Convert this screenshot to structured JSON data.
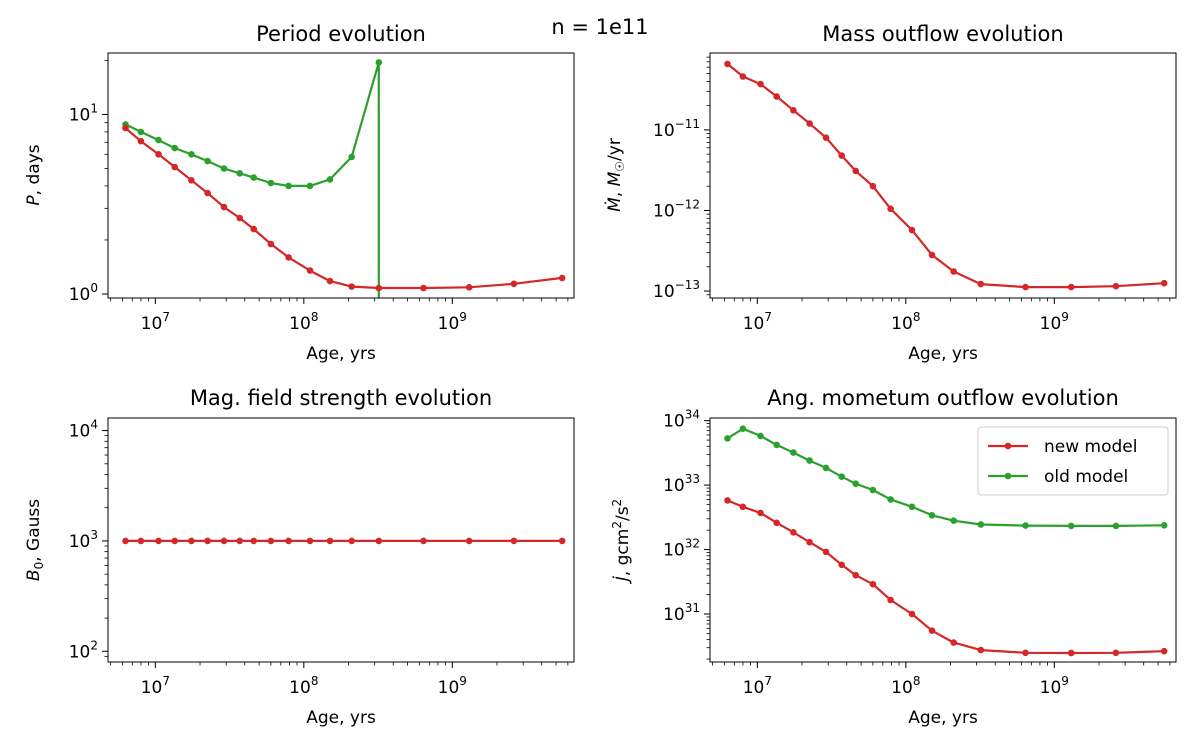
{
  "suptitle": "n = 1e11",
  "colors": {
    "new_model": "#d62728",
    "old_model": "#2ca02c"
  },
  "legend": {
    "new_label": "new model",
    "old_label": "old model",
    "placement": "upper right"
  },
  "chart_data": [
    {
      "type": "line",
      "title": "Period evolution",
      "xlabel": "Age, yrs",
      "ylabel": "P, days",
      "xscale": "log",
      "yscale": "log",
      "xlim": [
        4800000.0,
        6600000000.0
      ],
      "ylim": [
        0.95,
        22
      ],
      "x_ticks": [
        {
          "value": 10000000.0,
          "base": "10",
          "exp": "7"
        },
        {
          "value": 100000000.0,
          "base": "10",
          "exp": "8"
        },
        {
          "value": 1000000000.0,
          "base": "10",
          "exp": "9"
        }
      ],
      "y_ticks": [
        {
          "value": 1,
          "base": "10",
          "exp": "0"
        },
        {
          "value": 10,
          "base": "10",
          "exp": "1"
        }
      ],
      "series": [
        {
          "key": "new",
          "x": [
            6300000.0,
            8000000.0,
            10500000.0,
            13500000.0,
            17500000.0,
            22500000.0,
            29000000.0,
            37000000.0,
            46000000.0,
            60000000.0,
            79000000.0,
            110000000.0,
            150000000.0,
            210000000.0,
            320000000.0,
            640000000.0,
            1300000000.0,
            2600000000.0,
            5500000000.0
          ],
          "y": [
            8.4,
            7.1,
            6.0,
            5.1,
            4.3,
            3.65,
            3.05,
            2.65,
            2.3,
            1.9,
            1.6,
            1.35,
            1.18,
            1.1,
            1.08,
            1.08,
            1.09,
            1.14,
            1.23
          ]
        },
        {
          "key": "old",
          "x": [
            6300000.0,
            8000000.0,
            10500000.0,
            13500000.0,
            17500000.0,
            22500000.0,
            29000000.0,
            37000000.0,
            46000000.0,
            60000000.0,
            79000000.0,
            110000000.0,
            150000000.0,
            210000000.0,
            320000000.0,
            320000000.0
          ],
          "y": [
            8.8,
            8.0,
            7.2,
            6.5,
            6.0,
            5.5,
            5.0,
            4.7,
            4.45,
            4.15,
            4.0,
            4.0,
            4.35,
            5.8,
            19.5,
            0.9
          ]
        }
      ]
    },
    {
      "type": "line",
      "title": "Mass outflow evolution",
      "xlabel": "Age, yrs",
      "ylabel": "Ṁ, M☉/yr",
      "xscale": "log",
      "yscale": "log",
      "xlim": [
        4800000.0,
        6600000000.0
      ],
      "ylim": [
        8.2e-14,
        9e-11
      ],
      "x_ticks": [
        {
          "value": 10000000.0,
          "base": "10",
          "exp": "7"
        },
        {
          "value": 100000000.0,
          "base": "10",
          "exp": "8"
        },
        {
          "value": 1000000000.0,
          "base": "10",
          "exp": "9"
        }
      ],
      "y_ticks": [
        {
          "value": 1e-13,
          "base": "10",
          "exp": "−13"
        },
        {
          "value": 1e-12,
          "base": "10",
          "exp": "−12"
        },
        {
          "value": 1e-11,
          "base": "10",
          "exp": "−11"
        }
      ],
      "series": [
        {
          "key": "new",
          "x": [
            6300000.0,
            8000000.0,
            10500000.0,
            13500000.0,
            17500000.0,
            22500000.0,
            29000000.0,
            37000000.0,
            46000000.0,
            60000000.0,
            79000000.0,
            110000000.0,
            150000000.0,
            210000000.0,
            320000000.0,
            640000000.0,
            1300000000.0,
            2600000000.0,
            5500000000.0
          ],
          "y": [
            6.6e-11,
            4.6e-11,
            3.7e-11,
            2.6e-11,
            1.75e-11,
            1.2e-11,
            8e-12,
            4.8e-12,
            3.1e-12,
            2e-12,
            1.05e-12,
            5.7e-13,
            2.8e-13,
            1.75e-13,
            1.22e-13,
            1.12e-13,
            1.12e-13,
            1.15e-13,
            1.25e-13
          ]
        }
      ]
    },
    {
      "type": "line",
      "title": "Mag. field strength evolution",
      "xlabel": "Age, yrs",
      "ylabel": "B₀, Gauss",
      "xscale": "log",
      "yscale": "log",
      "xlim": [
        4800000.0,
        6600000000.0
      ],
      "ylim": [
        80,
        13000
      ],
      "x_ticks": [
        {
          "value": 10000000.0,
          "base": "10",
          "exp": "7"
        },
        {
          "value": 100000000.0,
          "base": "10",
          "exp": "8"
        },
        {
          "value": 1000000000.0,
          "base": "10",
          "exp": "9"
        }
      ],
      "y_ticks": [
        {
          "value": 100,
          "base": "10",
          "exp": "2"
        },
        {
          "value": 1000,
          "base": "10",
          "exp": "3"
        },
        {
          "value": 10000,
          "base": "10",
          "exp": "4"
        }
      ],
      "series": [
        {
          "key": "new",
          "x": [
            6300000.0,
            8000000.0,
            10500000.0,
            13500000.0,
            17500000.0,
            22500000.0,
            29000000.0,
            37000000.0,
            46000000.0,
            60000000.0,
            79000000.0,
            110000000.0,
            150000000.0,
            210000000.0,
            320000000.0,
            640000000.0,
            1300000000.0,
            2600000000.0,
            5500000000.0
          ],
          "y": [
            1000,
            1000,
            1000,
            1000,
            1000,
            1000,
            1000,
            1000,
            1000,
            1000,
            1000,
            1000,
            1000,
            1000,
            1000,
            1000,
            1000,
            1000,
            1000
          ]
        }
      ]
    },
    {
      "type": "line",
      "title": "Ang. mometum outflow evolution",
      "xlabel": "Age, yrs",
      "ylabel": "J̇, gcm²/s²",
      "xscale": "log",
      "yscale": "log",
      "xlim": [
        4800000.0,
        6600000000.0
      ],
      "ylim": [
        1.8e+30,
        1.1e+34
      ],
      "legend": true,
      "x_ticks": [
        {
          "value": 10000000.0,
          "base": "10",
          "exp": "7"
        },
        {
          "value": 100000000.0,
          "base": "10",
          "exp": "8"
        },
        {
          "value": 1000000000.0,
          "base": "10",
          "exp": "9"
        }
      ],
      "y_ticks": [
        {
          "value": 1e+31,
          "base": "10",
          "exp": "31"
        },
        {
          "value": 1e+32,
          "base": "10",
          "exp": "32"
        },
        {
          "value": 1e+33,
          "base": "10",
          "exp": "33"
        },
        {
          "value": 1e+34,
          "base": "10",
          "exp": "34"
        }
      ],
      "series": [
        {
          "key": "new",
          "x": [
            6300000.0,
            8000000.0,
            10500000.0,
            13500000.0,
            17500000.0,
            22500000.0,
            29000000.0,
            37000000.0,
            46000000.0,
            60000000.0,
            79000000.0,
            110000000.0,
            150000000.0,
            210000000.0,
            320000000.0,
            640000000.0,
            1300000000.0,
            2600000000.0,
            5500000000.0
          ],
          "y": [
            5.8e+32,
            4.6e+32,
            3.7e+32,
            2.6e+32,
            1.85e+32,
            1.3e+32,
            9.2e+31,
            5.8e+31,
            4e+31,
            2.9e+31,
            1.65e+31,
            1e+31,
            5.5e+30,
            3.6e+30,
            2.75e+30,
            2.5e+30,
            2.48e+30,
            2.5e+30,
            2.65e+30
          ]
        },
        {
          "key": "old",
          "x": [
            6300000.0,
            8000000.0,
            10500000.0,
            13500000.0,
            17500000.0,
            22500000.0,
            29000000.0,
            37000000.0,
            46000000.0,
            60000000.0,
            79000000.0,
            110000000.0,
            150000000.0,
            210000000.0,
            320000000.0,
            640000000.0,
            1300000000.0,
            2600000000.0,
            5500000000.0
          ],
          "y": [
            5.3e+33,
            7.5e+33,
            5.8e+33,
            4.2e+33,
            3.2e+33,
            2.4e+33,
            1.85e+33,
            1.35e+33,
            1.05e+33,
            8.4e+32,
            6e+32,
            4.6e+32,
            3.4e+32,
            2.8e+32,
            2.45e+32,
            2.35e+32,
            2.33e+32,
            2.33e+32,
            2.38e+32
          ]
        }
      ]
    }
  ]
}
